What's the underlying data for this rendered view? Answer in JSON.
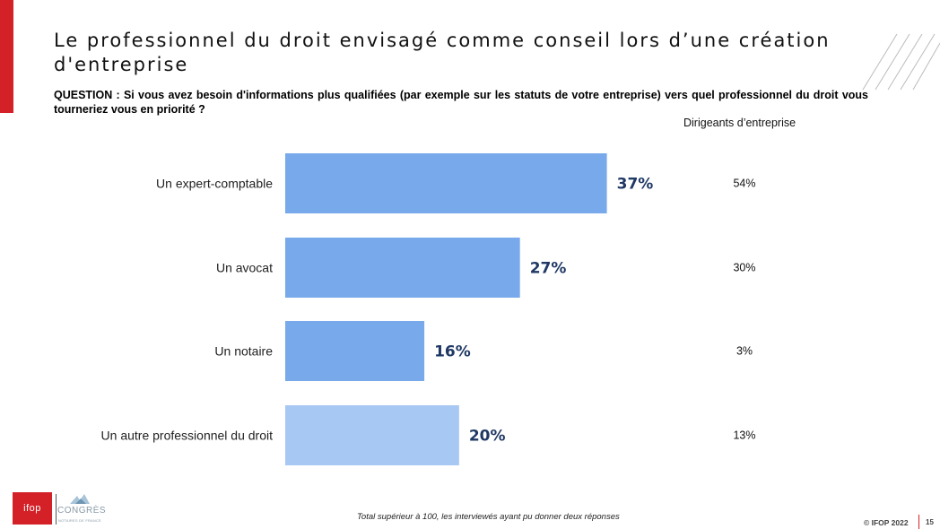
{
  "slide": {
    "title": "Le professionnel du droit envisagé comme conseil lors d’une création d'entreprise",
    "question": "QUESTION : Si vous avez besoin d'informations plus qualifiées (par exemple sur les statuts de votre entreprise) vers quel professionnel du droit vous tourneriez vous en priorité ?",
    "side_header": "Dirigeants d’entreprise"
  },
  "footer": {
    "note": "Total supérieur à 100, les interviewés ayant pu donner deux réponses",
    "copyright": "© IFOP 2022",
    "page": "15"
  },
  "logos": {
    "ifop": "ifop",
    "congres": "CONGRÈS",
    "congres_sub": "NOTAIRES DE FRANCE"
  },
  "colors": {
    "accent_red": "#d42027",
    "bar_main": "#78a9eb",
    "bar_light": "#a7c8f3",
    "value_label": "#1f3864"
  },
  "chart_data": {
    "type": "bar",
    "orientation": "horizontal",
    "categories": [
      "Un expert-comptable",
      "Un avocat",
      "Un notaire",
      "Un autre professionnel du droit"
    ],
    "values": [
      37,
      27,
      16,
      20
    ],
    "value_labels": [
      "37%",
      "27%",
      "16%",
      "20%"
    ],
    "bar_colors": [
      "#78a9eb",
      "#78a9eb",
      "#78a9eb",
      "#a7c8f3"
    ],
    "xlim": [
      0,
      65
    ],
    "comparison": {
      "name": "Dirigeants d’entreprise",
      "values": [
        54,
        30,
        3,
        13
      ],
      "labels": [
        "54%",
        "30%",
        "3%",
        "13%"
      ]
    },
    "grid": false,
    "legend": "none"
  }
}
